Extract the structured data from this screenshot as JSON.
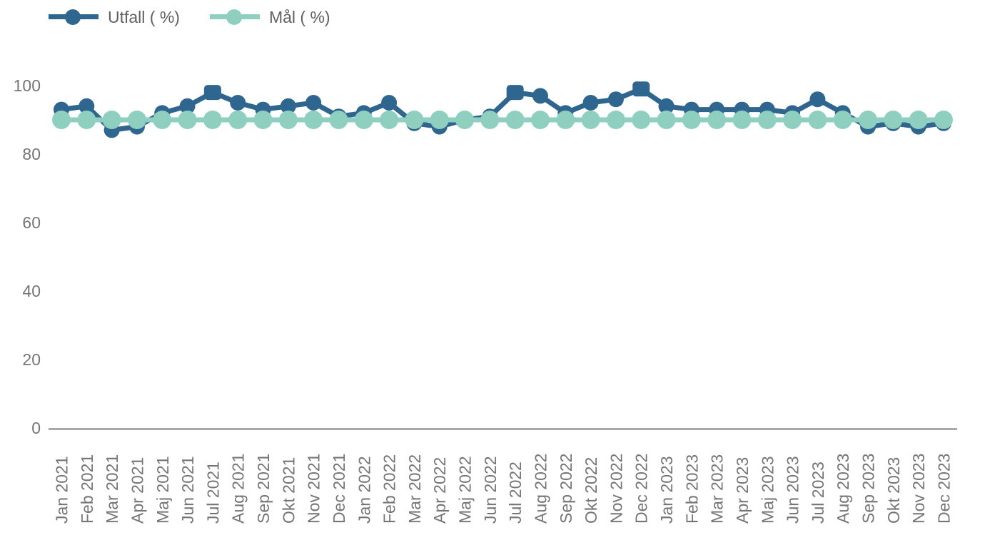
{
  "chart_data": {
    "type": "line",
    "title": "",
    "xlabel": "",
    "ylabel": "",
    "ylim": [
      0,
      100
    ],
    "yticks": [
      0,
      20,
      40,
      60,
      80,
      100
    ],
    "grid": false,
    "legend_position": "top-left",
    "axis_color": "#a8a8a8",
    "tick_label_color": "#757575",
    "legend_text_color": "#616161",
    "categories": [
      "Jan 2021",
      "Feb 2021",
      "Mar 2021",
      "Apr 2021",
      "Maj 2021",
      "Jun 2021",
      "Jul 2021",
      "Aug 2021",
      "Sep 2021",
      "Okt 2021",
      "Nov 2021",
      "Dec 2021",
      "Jan 2022",
      "Feb 2022",
      "Mar 2022",
      "Apr 2022",
      "Maj 2022",
      "Jun 2022",
      "Jul 2022",
      "Aug 2022",
      "Sep 2022",
      "Okt 2022",
      "Nov 2022",
      "Dec 2022",
      "Jan 2023",
      "Feb 2023",
      "Mar 2023",
      "Apr 2023",
      "Maj 2023",
      "Jun 2023",
      "Jul 2023",
      "Aug 2023",
      "Sep 2023",
      "Okt 2023",
      "Nov 2023",
      "Dec 2023"
    ],
    "series": [
      {
        "name": "Utfall ( %)",
        "color": "#2f6690",
        "marker": "circle",
        "square_marker_indices": [
          6,
          18,
          23
        ],
        "values": [
          93,
          94,
          87,
          88,
          92,
          94,
          98,
          95,
          93,
          94,
          95,
          91,
          92,
          95,
          89,
          88,
          90,
          91,
          98,
          97,
          92,
          95,
          96,
          99,
          94,
          93,
          93,
          93,
          93,
          92,
          96,
          92,
          88,
          89,
          88,
          89
        ]
      },
      {
        "name": "Mål ( %)",
        "color": "#8fcfc0",
        "marker": "circle",
        "square_marker_indices": [],
        "values": [
          90,
          90,
          90,
          90,
          90,
          90,
          90,
          90,
          90,
          90,
          90,
          90,
          90,
          90,
          90,
          90,
          90,
          90,
          90,
          90,
          90,
          90,
          90,
          90,
          90,
          90,
          90,
          90,
          90,
          90,
          90,
          90,
          90,
          90,
          90,
          90
        ]
      }
    ]
  }
}
